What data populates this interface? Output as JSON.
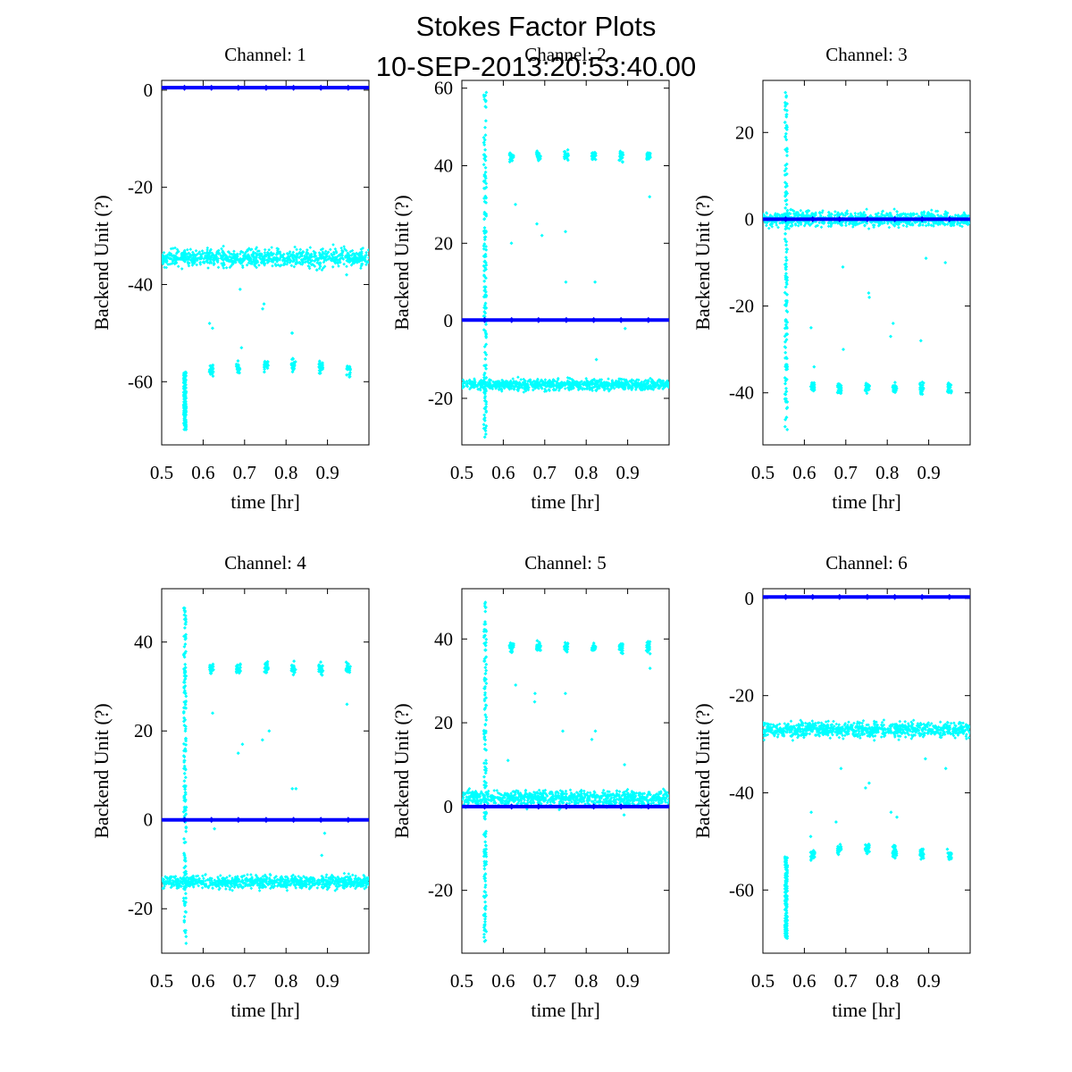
{
  "figure": {
    "title_line1": "Stokes Factor Plots",
    "title_line2": "10-SEP-2013:20:53:40.00"
  },
  "colors": {
    "stokes_a": "#00ffff",
    "stokes_b": "#0000ff",
    "axes": "#000000",
    "background": "#ffffff"
  },
  "chart_data": [
    {
      "type": "scatter",
      "title": "Channel: 1",
      "xlabel": "time [hr]",
      "ylabel": "Backend Unit (?)",
      "xlim": [
        0.5,
        1.0
      ],
      "ylim": [
        -73,
        2
      ],
      "xticks": [
        0.5,
        0.6,
        0.7,
        0.8,
        0.9
      ],
      "yticks": [
        -60,
        -40,
        -20,
        0
      ],
      "series": [
        {
          "name": "cyan",
          "color": "#00ffff",
          "baseline": -34.5,
          "noise": 1.3,
          "spike": [
            -70,
            -58
          ],
          "clusters": [
            -57.5,
            -57,
            -56.5,
            -56.5,
            -57,
            -57.5
          ],
          "sparse": [
            -49,
            -53,
            -45,
            -50,
            -37,
            -38,
            -48,
            -41,
            -44,
            -50
          ]
        },
        {
          "name": "blue",
          "color": "#0000ff",
          "baseline": 0.5,
          "noise": 0.15
        }
      ]
    },
    {
      "type": "scatter",
      "title": "Channel: 2",
      "xlabel": "time [hr]",
      "ylabel": "Backend Unit (?)",
      "xlim": [
        0.5,
        1.0
      ],
      "ylim": [
        -32,
        62
      ],
      "xticks": [
        0.5,
        0.6,
        0.7,
        0.8,
        0.9
      ],
      "yticks": [
        -20,
        0,
        20,
        40,
        60
      ],
      "series": [
        {
          "name": "cyan",
          "color": "#00ffff",
          "baseline": -16.5,
          "noise": 1.0,
          "spike": [
            -31,
            60
          ],
          "clusters": [
            42.5,
            42.5,
            42.5,
            42.5,
            42.5,
            42.5
          ],
          "sparse": [
            30,
            22,
            23,
            10,
            -2,
            32,
            20,
            25,
            10,
            -10
          ]
        },
        {
          "name": "blue",
          "color": "#0000ff",
          "baseline": 0.2,
          "noise": 0.15
        }
      ]
    },
    {
      "type": "scatter",
      "title": "Channel: 3",
      "xlabel": "time [hr]",
      "ylabel": "Backend Unit (?)",
      "xlim": [
        0.5,
        1.0
      ],
      "ylim": [
        -52,
        32
      ],
      "xticks": [
        0.5,
        0.6,
        0.7,
        0.8,
        0.9
      ],
      "yticks": [
        -40,
        -20,
        0,
        20
      ],
      "series": [
        {
          "name": "cyan",
          "color": "#00ffff",
          "baseline": 0,
          "noise": 1.2,
          "spike": [
            -49,
            30
          ],
          "clusters": [
            -39,
            -39,
            -39,
            -39,
            -39,
            -39
          ],
          "sparse": [
            -25,
            -30,
            -18,
            -27,
            -9,
            -10,
            -34,
            -11,
            -17,
            -24,
            -28
          ]
        },
        {
          "name": "blue",
          "color": "#0000ff",
          "baseline": 0,
          "noise": 0.15
        }
      ]
    },
    {
      "type": "scatter",
      "title": "Channel: 4",
      "xlabel": "time [hr]",
      "ylabel": "Backend Unit (?)",
      "xlim": [
        0.5,
        1.0
      ],
      "ylim": [
        -30,
        52
      ],
      "xticks": [
        0.5,
        0.6,
        0.7,
        0.8,
        0.9
      ],
      "yticks": [
        -20,
        0,
        20,
        40
      ],
      "series": [
        {
          "name": "cyan",
          "color": "#00ffff",
          "baseline": -14,
          "noise": 1.0,
          "spike": [
            -28,
            49
          ],
          "clusters": [
            34,
            34,
            34,
            34,
            34,
            34
          ],
          "sparse": [
            24,
            17,
            18,
            7,
            -3,
            26,
            -2,
            15,
            20,
            7,
            -8
          ]
        },
        {
          "name": "blue",
          "color": "#0000ff",
          "baseline": 0,
          "noise": 0.15
        }
      ]
    },
    {
      "type": "scatter",
      "title": "Channel: 5",
      "xlabel": "time [hr]",
      "ylabel": "Backend Unit (?)",
      "xlim": [
        0.5,
        1.0
      ],
      "ylim": [
        -35,
        52
      ],
      "xticks": [
        0.5,
        0.6,
        0.7,
        0.8,
        0.9
      ],
      "yticks": [
        -20,
        0,
        20,
        40
      ],
      "series": [
        {
          "name": "cyan",
          "color": "#00ffff",
          "baseline": 2,
          "noise": 1.3,
          "spike": [
            -33,
            49
          ],
          "clusters": [
            38,
            38,
            38,
            38,
            38,
            38
          ],
          "sparse": [
            29,
            25,
            27,
            18,
            10,
            33,
            11,
            27,
            18,
            16,
            -2
          ]
        },
        {
          "name": "blue",
          "color": "#0000ff",
          "baseline": 0,
          "noise": 0.15
        }
      ]
    },
    {
      "type": "scatter",
      "title": "Channel: 6",
      "xlabel": "time [hr]",
      "ylabel": "Backend Unit (?)",
      "xlim": [
        0.5,
        1.0
      ],
      "ylim": [
        -73,
        2
      ],
      "xticks": [
        0.5,
        0.6,
        0.7,
        0.8,
        0.9
      ],
      "yticks": [
        -60,
        -40,
        -20,
        0
      ],
      "series": [
        {
          "name": "cyan",
          "color": "#00ffff",
          "baseline": -27,
          "noise": 1.1,
          "spike": [
            -70,
            -53
          ],
          "clusters": [
            -52.5,
            -52,
            -51.5,
            -52,
            -52.5,
            -53
          ],
          "sparse": [
            -44,
            -46,
            -38,
            -44,
            -33,
            -35,
            -49,
            -35,
            -39,
            -45
          ]
        },
        {
          "name": "blue",
          "color": "#0000ff",
          "baseline": 0.3,
          "noise": 0.15
        }
      ]
    }
  ]
}
